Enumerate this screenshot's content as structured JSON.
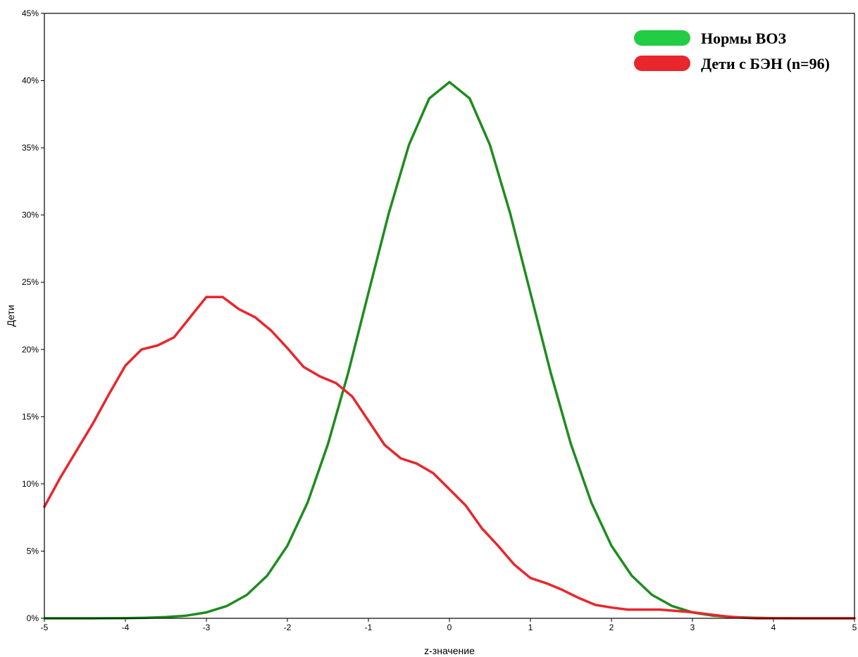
{
  "chart_data": {
    "type": "line",
    "xlabel": "z-значение",
    "ylabel": "Дети",
    "xlim": [
      -5,
      5
    ],
    "ylim": [
      0,
      45
    ],
    "x_ticks": [
      -5,
      -4,
      -3,
      -2,
      -1,
      0,
      1,
      2,
      3,
      4,
      5
    ],
    "y_ticks": [
      0,
      5,
      10,
      15,
      20,
      25,
      30,
      35,
      40,
      45
    ],
    "y_tick_labels": [
      "0%",
      "5%",
      "10%",
      "15%",
      "20%",
      "25%",
      "30%",
      "35%",
      "40%",
      "45%"
    ],
    "grid": false,
    "legend_position": "top-right",
    "series": [
      {
        "name": "Нормы ВОЗ",
        "color": "#1e8c1e",
        "legend_color": "#22cc44",
        "x": [
          -5,
          -4.5,
          -4,
          -3.75,
          -3.5,
          -3.25,
          -3,
          -2.75,
          -2.5,
          -2.25,
          -2,
          -1.75,
          -1.5,
          -1.25,
          -1,
          -0.75,
          -0.5,
          -0.25,
          0,
          0.25,
          0.5,
          0.75,
          1,
          1.25,
          1.5,
          1.75,
          2,
          2.25,
          2.5,
          2.75,
          3,
          3.25,
          3.5,
          3.75,
          4,
          4.5,
          5
        ],
        "values": [
          0,
          0,
          0.01,
          0.04,
          0.09,
          0.2,
          0.44,
          0.91,
          1.75,
          3.17,
          5.4,
          8.63,
          12.95,
          18.26,
          24.2,
          30.11,
          35.21,
          38.67,
          39.89,
          38.67,
          35.21,
          30.11,
          24.2,
          18.26,
          12.95,
          8.63,
          5.4,
          3.17,
          1.75,
          0.91,
          0.44,
          0.2,
          0.09,
          0.04,
          0.01,
          0,
          0
        ]
      },
      {
        "name": "Дети с БЭН (n=96)",
        "color": "#e8262c",
        "legend_color": "#e8262c",
        "x": [
          -5,
          -4.8,
          -4.6,
          -4.4,
          -4.2,
          -4,
          -3.8,
          -3.6,
          -3.4,
          -3.2,
          -3,
          -2.8,
          -2.6,
          -2.4,
          -2.2,
          -2,
          -1.8,
          -1.6,
          -1.4,
          -1.2,
          -1,
          -0.8,
          -0.6,
          -0.4,
          -0.2,
          0,
          0.2,
          0.4,
          0.6,
          0.8,
          1,
          1.2,
          1.4,
          1.6,
          1.8,
          2,
          2.2,
          2.4,
          2.6,
          2.8,
          3,
          3.2,
          3.4,
          3.6,
          3.8,
          4,
          4.5,
          5
        ],
        "values": [
          8.3,
          10.5,
          12.5,
          14.5,
          16.7,
          18.8,
          20.0,
          20.3,
          20.9,
          22.4,
          23.9,
          23.9,
          23.0,
          22.4,
          21.4,
          20.1,
          18.7,
          18.0,
          17.5,
          16.5,
          14.7,
          12.9,
          11.9,
          11.5,
          10.8,
          9.6,
          8.4,
          6.7,
          5.4,
          4.0,
          3.0,
          2.6,
          2.1,
          1.5,
          1.0,
          0.8,
          0.65,
          0.65,
          0.65,
          0.55,
          0.45,
          0.3,
          0.15,
          0.05,
          0,
          0,
          0,
          0
        ]
      }
    ]
  }
}
